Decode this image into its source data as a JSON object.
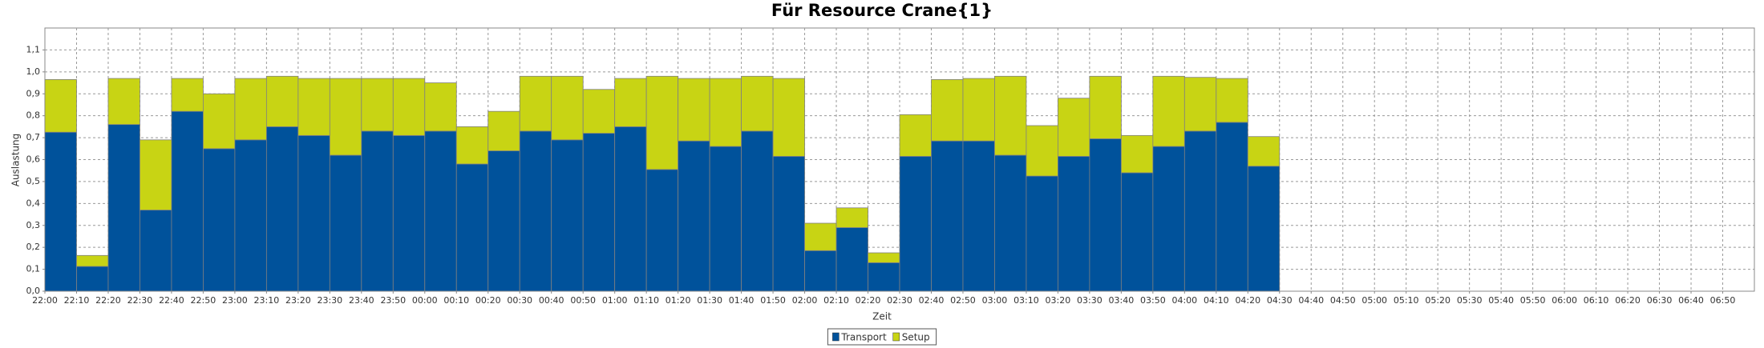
{
  "chart_data": {
    "type": "stacked_bar",
    "title": "Für Resource Crane{1}",
    "x_label": "Zeit",
    "y_label": "Auslastung",
    "categories": [
      "22:00",
      "22:10",
      "22:20",
      "22:30",
      "22:40",
      "22:50",
      "23:00",
      "23:10",
      "23:20",
      "23:30",
      "23:40",
      "23:50",
      "00:00",
      "00:10",
      "00:20",
      "00:30",
      "00:40",
      "00:50",
      "01:00",
      "01:10",
      "01:20",
      "01:30",
      "01:40",
      "01:50",
      "02:00",
      "02:10",
      "02:20",
      "02:30",
      "02:40",
      "02:50",
      "03:00",
      "03:10",
      "03:20",
      "03:30",
      "03:40",
      "03:50",
      "04:00",
      "04:10",
      "04:20",
      "04:30",
      "04:40",
      "04:50",
      "05:00",
      "05:10",
      "05:20",
      "05:30",
      "05:40",
      "05:50",
      "06:00",
      "06:10",
      "06:20",
      "06:30",
      "06:40",
      "06:50"
    ],
    "series": [
      {
        "name": "Transport",
        "color": "#00529b",
        "values": [
          0.725,
          0.113,
          0.76,
          0.37,
          0.82,
          0.65,
          0.69,
          0.75,
          0.71,
          0.62,
          0.73,
          0.71,
          0.73,
          0.58,
          0.64,
          0.73,
          0.69,
          0.72,
          0.75,
          0.555,
          0.685,
          0.66,
          0.73,
          0.615,
          0.185,
          0.29,
          0.13,
          0.615,
          0.685,
          0.685,
          0.62,
          0.525,
          0.615,
          0.695,
          0.54,
          0.66,
          0.73,
          0.77,
          0.57,
          null,
          null,
          null,
          null,
          null,
          null,
          null,
          null,
          null,
          null,
          null,
          null,
          null,
          null,
          null
        ]
      },
      {
        "name": "Setup",
        "color": "#c8d414",
        "values": [
          0.24,
          0.05,
          0.21,
          0.32,
          0.15,
          0.25,
          0.28,
          0.23,
          0.26,
          0.35,
          0.24,
          0.26,
          0.22,
          0.17,
          0.18,
          0.25,
          0.29,
          0.2,
          0.22,
          0.425,
          0.285,
          0.31,
          0.25,
          0.355,
          0.125,
          0.09,
          0.045,
          0.19,
          0.28,
          0.285,
          0.36,
          0.23,
          0.265,
          0.285,
          0.17,
          0.32,
          0.245,
          0.2,
          0.135,
          null,
          null,
          null,
          null,
          null,
          null,
          null,
          null,
          null,
          null,
          null,
          null,
          null,
          null,
          null
        ]
      }
    ],
    "ylim": [
      0,
      1.2
    ],
    "yticks": [
      {
        "value": 0,
        "label": "0,0"
      },
      {
        "value": 0.1,
        "label": "0,1"
      },
      {
        "value": 0.2,
        "label": "0,2"
      },
      {
        "value": 0.3,
        "label": "0,3"
      },
      {
        "value": 0.4,
        "label": "0,4"
      },
      {
        "value": 0.5,
        "label": "0,5"
      },
      {
        "value": 0.6,
        "label": "0,6"
      },
      {
        "value": 0.7,
        "label": "0,7"
      },
      {
        "value": 0.8,
        "label": "0,8"
      },
      {
        "value": 0.9,
        "label": "0,9"
      },
      {
        "value": 1.0,
        "label": "1,0"
      },
      {
        "value": 1.1,
        "label": "1,1"
      }
    ],
    "grid": true,
    "legend": "bottom"
  }
}
